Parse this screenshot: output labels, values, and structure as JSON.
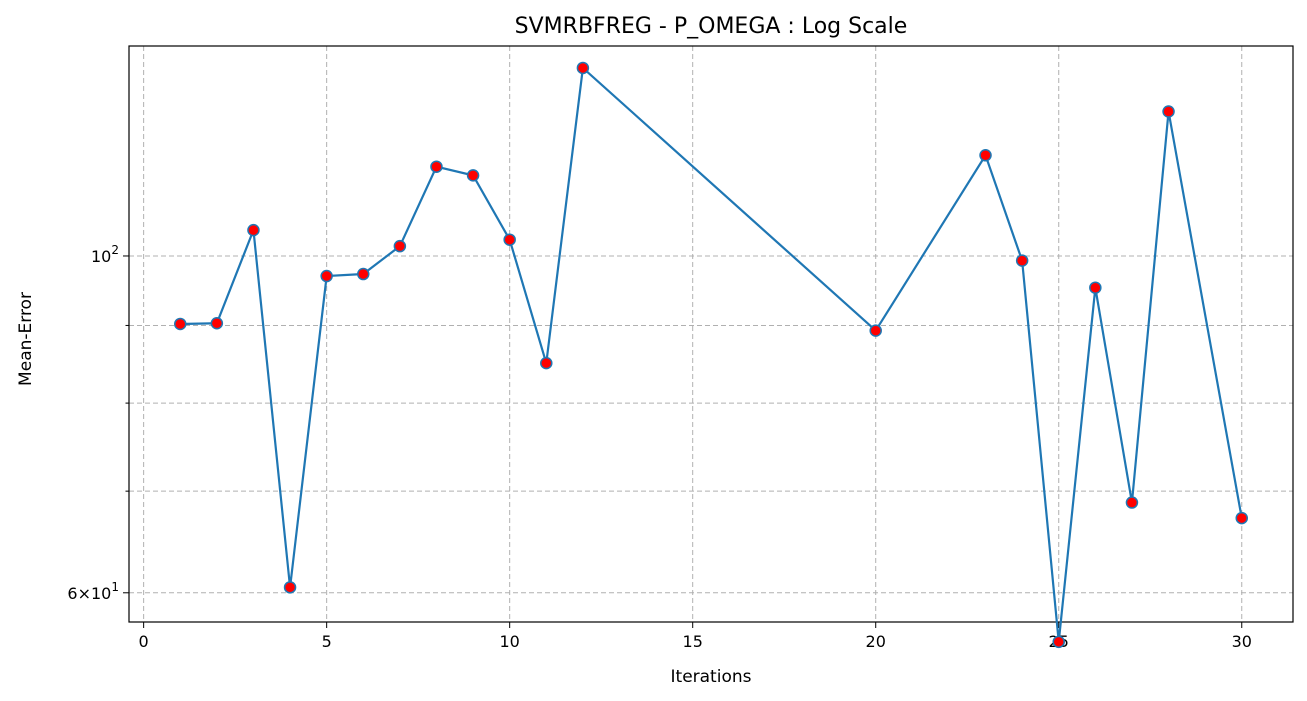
{
  "chart_data": {
    "type": "line",
    "title": "SVMRBFREG - P_OMEGA : Log Scale",
    "xlabel": "Iterations",
    "ylabel": "Mean-Error",
    "yscale": "log",
    "grid": true,
    "xlim": [
      -0.4,
      31.4
    ],
    "ylim": [
      57.4,
      137.5
    ],
    "x_ticks": [
      0,
      5,
      10,
      15,
      20,
      25,
      30
    ],
    "y_major_ticks": [
      {
        "value": 60,
        "label": "6×10¹"
      },
      {
        "value": 100,
        "label": "10²"
      }
    ],
    "y_minor_ticks": [
      70,
      80,
      90
    ],
    "line_color": "#1f77b4",
    "marker_color": "#ff0000",
    "series": [
      {
        "x": [
          1,
          2,
          3,
          4,
          5,
          6,
          7,
          8,
          9,
          10,
          11,
          12,
          20,
          23,
          24,
          25,
          26,
          27,
          28,
          30
        ],
        "values": [
          90.2,
          90.3,
          104.0,
          60.5,
          97.0,
          97.3,
          101.5,
          114.5,
          113.0,
          102.5,
          85.0,
          133.0,
          89.3,
          116.5,
          99.3,
          55.7,
          95.3,
          68.8,
          124.5,
          67.2
        ]
      }
    ]
  }
}
